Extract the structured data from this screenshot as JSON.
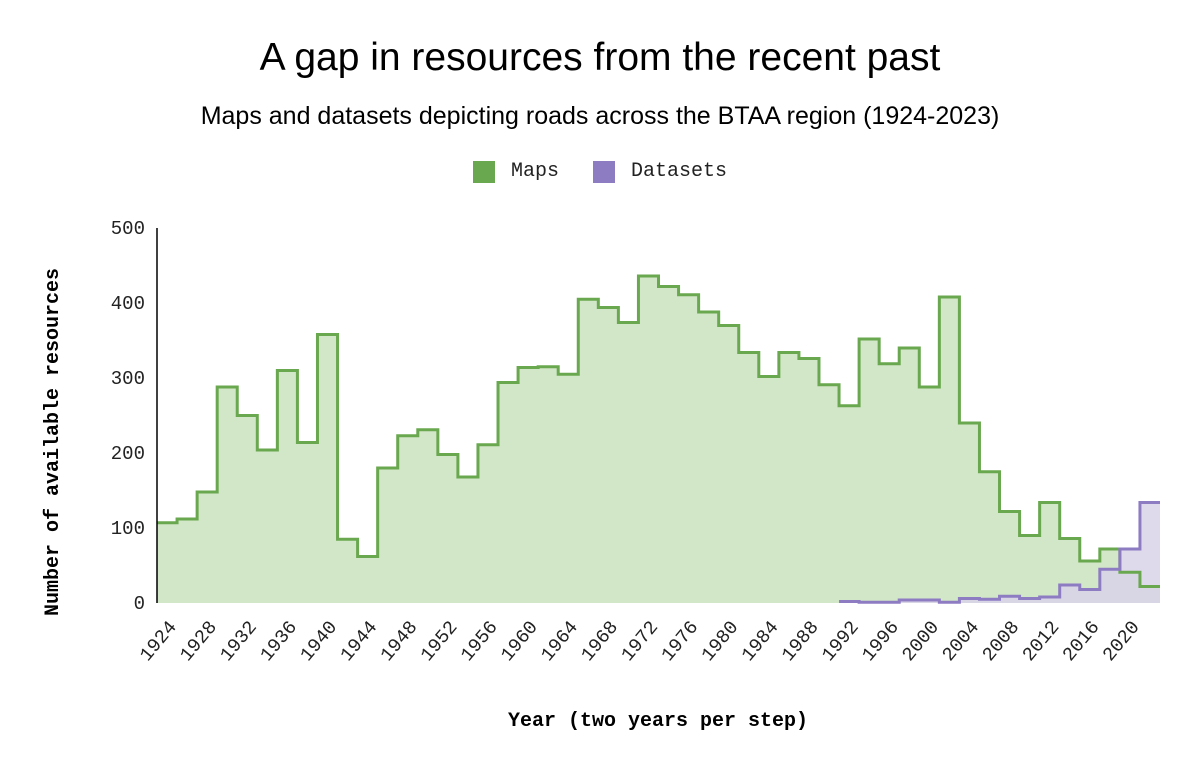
{
  "chart_data": {
    "type": "area",
    "step": true,
    "title": "A gap in resources from the recent past",
    "subtitle": "Maps and datasets depicting roads across the BTAA region (1924-2023)",
    "xlabel": "Year (two years per step)",
    "ylabel": "Number of available resources",
    "ylim": [
      0,
      500
    ],
    "yticks": [
      "0",
      "100",
      "200",
      "300",
      "400",
      "500"
    ],
    "xticks": [
      "1924",
      "1928",
      "1932",
      "1936",
      "1940",
      "1944",
      "1948",
      "1952",
      "1956",
      "1960",
      "1964",
      "1968",
      "1972",
      "1976",
      "1980",
      "1984",
      "1988",
      "1992",
      "1996",
      "2000",
      "2004",
      "2008",
      "2012",
      "2016",
      "2020"
    ],
    "x": [
      1924,
      1926,
      1928,
      1930,
      1932,
      1934,
      1936,
      1938,
      1940,
      1942,
      1944,
      1946,
      1948,
      1950,
      1952,
      1954,
      1956,
      1958,
      1960,
      1962,
      1964,
      1966,
      1968,
      1970,
      1972,
      1974,
      1976,
      1978,
      1980,
      1982,
      1984,
      1986,
      1988,
      1990,
      1992,
      1994,
      1996,
      1998,
      2000,
      2002,
      2004,
      2006,
      2008,
      2010,
      2012,
      2014,
      2016,
      2018,
      2020,
      2022
    ],
    "legend_position": "top-center",
    "series": [
      {
        "name": "Maps",
        "color": "#6aa84f",
        "fill": "#d2e6c8",
        "values": [
          107,
          112,
          148,
          288,
          250,
          204,
          310,
          214,
          358,
          85,
          62,
          180,
          223,
          231,
          198,
          168,
          211,
          294,
          314,
          315,
          305,
          405,
          394,
          374,
          436,
          422,
          411,
          388,
          370,
          334,
          302,
          334,
          326,
          291,
          263,
          352,
          319,
          340,
          288,
          408,
          240,
          175,
          122,
          90,
          134,
          86,
          56,
          72,
          41,
          22
        ]
      },
      {
        "name": "Datasets",
        "color": "#8e7cc3",
        "fill": "#d9d2e9",
        "values": [
          null,
          null,
          null,
          null,
          null,
          null,
          null,
          null,
          null,
          null,
          null,
          null,
          null,
          null,
          null,
          null,
          null,
          null,
          null,
          null,
          null,
          null,
          null,
          null,
          null,
          null,
          null,
          null,
          null,
          null,
          null,
          null,
          null,
          null,
          2,
          1,
          1,
          4,
          4,
          1,
          6,
          5,
          9,
          6,
          8,
          24,
          18,
          45,
          72,
          134
        ]
      }
    ]
  }
}
